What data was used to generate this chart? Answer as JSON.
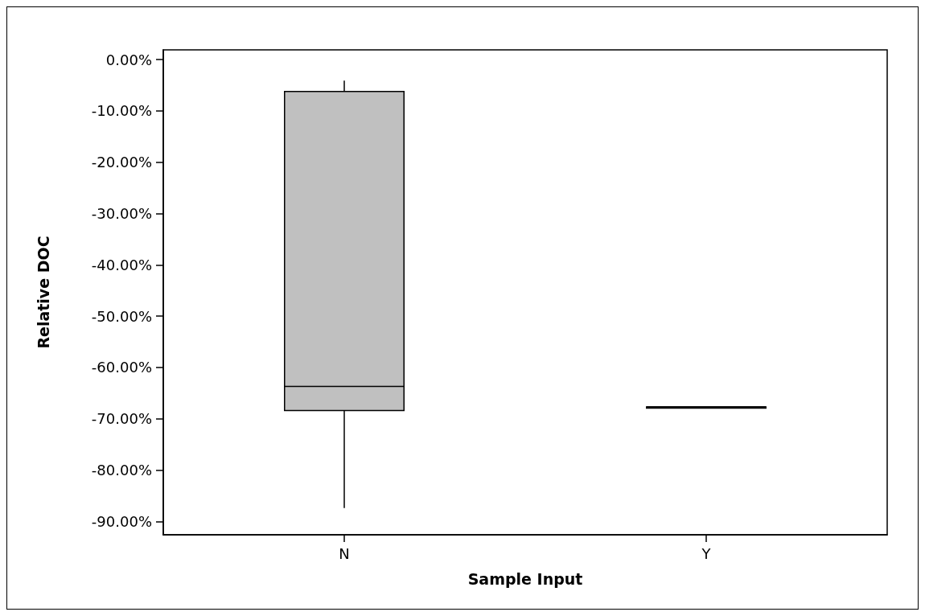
{
  "chart_data": {
    "type": "box",
    "xlabel": "Sample Input",
    "ylabel": "Relative DOC",
    "categories": [
      "N",
      "Y"
    ],
    "boxes": [
      {
        "low": -87.4,
        "q1": -68.4,
        "median": -63.7,
        "q3": -6.2,
        "high": -4.1
      },
      {
        "low": -67.7,
        "q1": -67.7,
        "median": -67.7,
        "q3": -67.7,
        "high": -67.7
      }
    ],
    "color": "#c0c0c0",
    "ylim": [
      -92.6,
      1.9
    ],
    "yticks": [
      {
        "value": 0,
        "label": "0.00%"
      },
      {
        "value": -10,
        "label": "-10.00%"
      },
      {
        "value": -20,
        "label": "-20.00%"
      },
      {
        "value": -30,
        "label": "-30.00%"
      },
      {
        "value": -40,
        "label": "-40.00%"
      },
      {
        "value": -50,
        "label": "-50.00%"
      },
      {
        "value": -60,
        "label": "-60.00%"
      },
      {
        "value": -70,
        "label": "-70.00%"
      },
      {
        "value": -80,
        "label": "-80.00%"
      },
      {
        "value": -90,
        "label": "-90.00%"
      }
    ],
    "grid": false
  }
}
